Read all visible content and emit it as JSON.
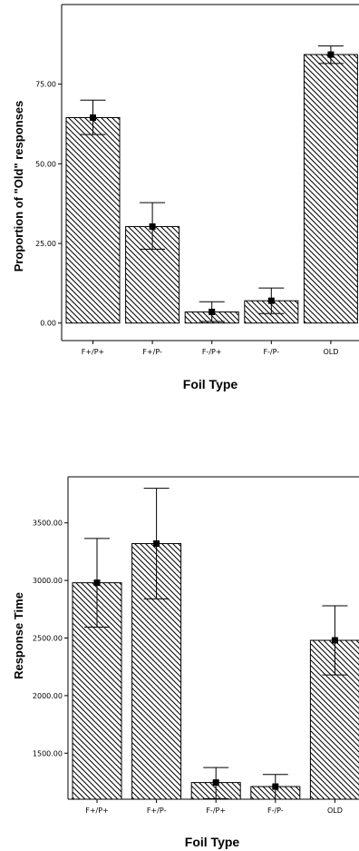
{
  "chart_data": [
    {
      "type": "bar",
      "categories": [
        "F+/P+",
        "F+/P-",
        "F-/P+",
        "F-/P-",
        "OLD"
      ],
      "values": [
        64.5,
        30.3,
        3.5,
        7.0,
        84.3
      ],
      "error_low": [
        59.2,
        23.2,
        0.5,
        3.0,
        81.5
      ],
      "error_high": [
        70.0,
        37.8,
        6.7,
        11.0,
        87.0
      ],
      "ylim": [
        -5.5,
        100
      ],
      "yticks": [
        0,
        25,
        50,
        75
      ],
      "ytick_labels": [
        "0.00",
        "25.00",
        "50.00",
        "75.00"
      ],
      "xlabel": "Foil Type",
      "ylabel": "Proportion of \"Old\" responses",
      "pattern": "diagonal-hatch",
      "grid": false
    },
    {
      "type": "bar",
      "categories": [
        "F+/P+",
        "F+/P-",
        "F-/P+",
        "F-/P-",
        "OLD"
      ],
      "values": [
        2980,
        3320,
        1245,
        1210,
        2480
      ],
      "error_low": [
        2595,
        2840,
        1105,
        1100,
        2180
      ],
      "error_high": [
        3365,
        3800,
        1375,
        1315,
        2780
      ],
      "ylim": [
        1100,
        3900
      ],
      "yticks": [
        1500,
        2000,
        2500,
        3000,
        3500
      ],
      "ytick_labels": [
        "1500.00",
        "2000.00",
        "2500.00",
        "3000.00",
        "3500.00"
      ],
      "xlabel": "Foil Type",
      "ylabel": "Response Time",
      "pattern": "diagonal-hatch",
      "grid": false
    }
  ]
}
